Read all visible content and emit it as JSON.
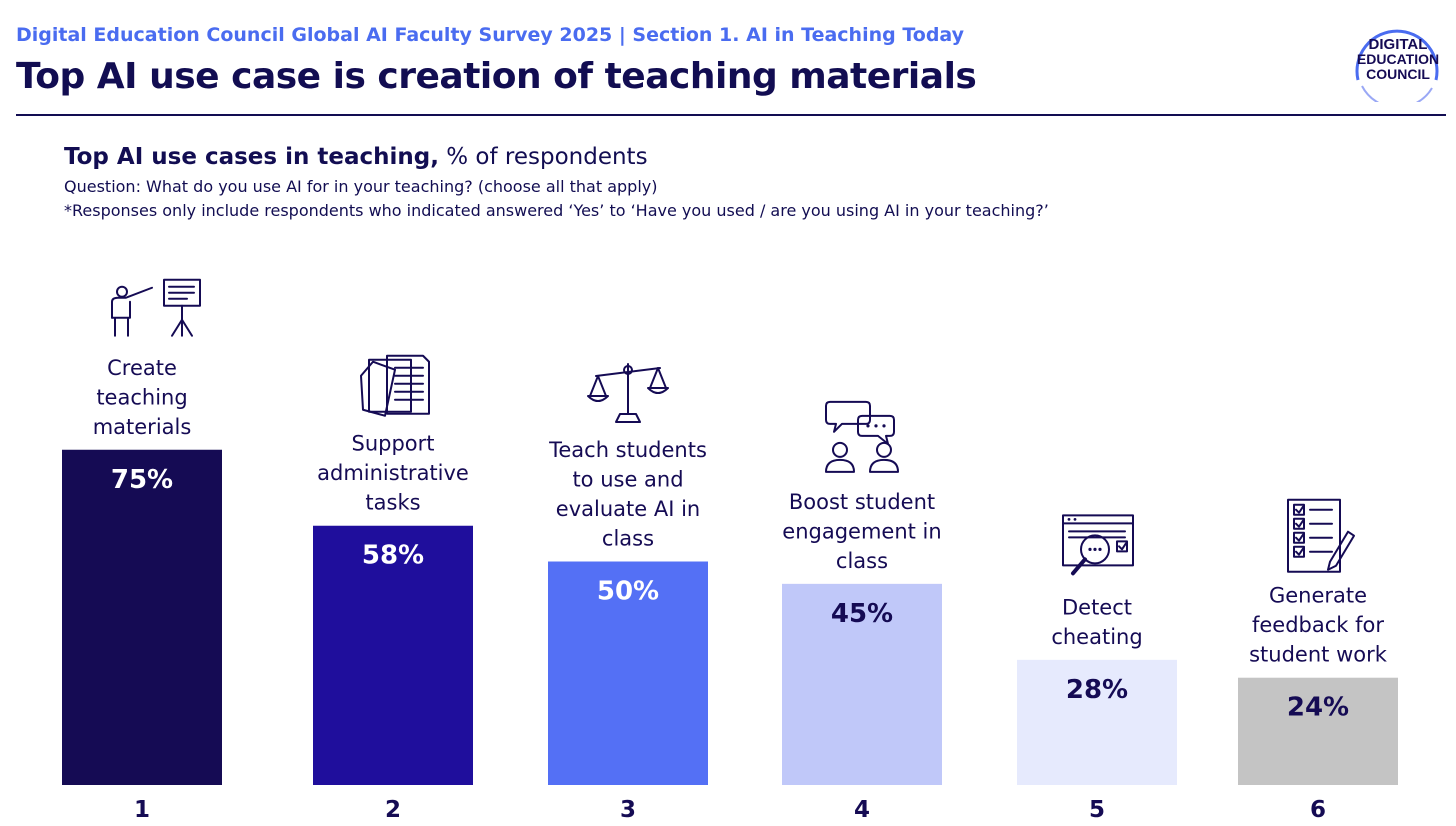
{
  "header": {
    "eyebrow": "Digital Education Council Global AI Faculty Survey 2025 | Section 1. AI in Teaching Today",
    "headline": "Top AI use case is creation of teaching materials"
  },
  "logo": {
    "line1": "DIGITAL",
    "line2": "EDUCATION",
    "line3": "COUNCIL"
  },
  "chart_data": {
    "type": "bar",
    "title": "Top AI use cases in teaching,",
    "title_unit": "% of respondents",
    "question": "Question: What do you use AI for in your teaching? (choose all that apply)",
    "footnote": "*Responses only include respondents who indicated answered ‘Yes’ to ‘Have you used / are you using AI in your teaching?’",
    "ylim": [
      0,
      100
    ],
    "grid": false,
    "categories": [
      "1",
      "2",
      "3",
      "4",
      "5",
      "6"
    ],
    "values": [
      75,
      58,
      50,
      45,
      28,
      24
    ],
    "value_labels": [
      "75%",
      "58%",
      "50%",
      "45%",
      "28%",
      "24%"
    ],
    "bar_labels": [
      [
        "Create",
        "teaching",
        "materials"
      ],
      [
        "Support",
        "administrative",
        "tasks"
      ],
      [
        "Teach students",
        "to use and",
        "evaluate AI in",
        "class"
      ],
      [
        "Boost student",
        "engagement in",
        "class"
      ],
      [
        "Detect",
        "cheating"
      ],
      [
        "Generate",
        "feedback for",
        "student work"
      ]
    ],
    "icons": [
      "presentation-teacher-icon",
      "documents-icon",
      "balance-scale-icon",
      "chat-people-icon",
      "magnifier-screen-icon",
      "checklist-pencil-icon"
    ],
    "colors": [
      "#150b54",
      "#1f0e9c",
      "#5470f5",
      "#c0c8f9",
      "#e6eafd",
      "#c4c4c4"
    ],
    "label_colors": [
      "#ffffff",
      "#ffffff",
      "#ffffff",
      "#150b54",
      "#150b54",
      "#150b54"
    ]
  }
}
